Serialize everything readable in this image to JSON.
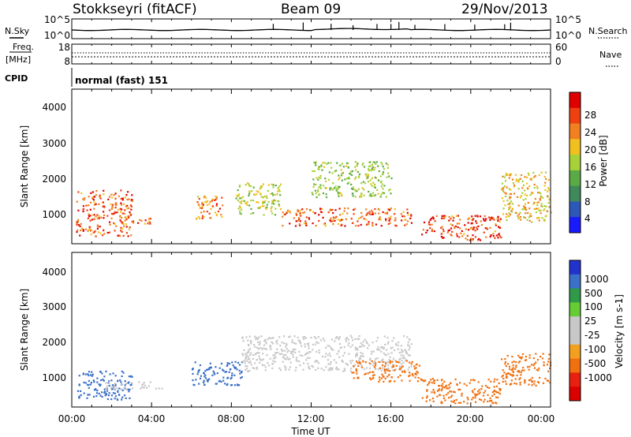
{
  "header": {
    "station": "Stokkseyri (fitACF)",
    "beam": "Beam 09",
    "date": "29/Nov/2013"
  },
  "side_labels": {
    "nsky": "N.Sky",
    "freq": "Freq.",
    "freq_unit": "[MHz]",
    "cpid": "CPID",
    "nsearch": "N.Search",
    "nave": "Nave"
  },
  "cpid_value": "normal (fast) 151",
  "colors": {
    "scale_power": [
      "#1a1aff",
      "#2e58b8",
      "#3e8a5a",
      "#5aaa46",
      "#a8d038",
      "#f0c020",
      "#f08020",
      "#f04010",
      "#e00000"
    ],
    "scale_velocity": [
      "#2233cc",
      "#3a70c8",
      "#2e9a4a",
      "#66cc33",
      "#c8c8c8",
      "#c8c8c8",
      "#f3a020",
      "#f07010",
      "#e82010",
      "#dd0000"
    ]
  },
  "chart_data": [
    {
      "type": "line",
      "panel": "noise",
      "left_ticks": [
        "10^5",
        "10^0"
      ],
      "right_ticks": [
        "10^5",
        "10^0"
      ],
      "series": [
        {
          "name": "N.Sky",
          "style": "solid"
        },
        {
          "name": "N.Search",
          "style": "dotted"
        }
      ],
      "x_range": [
        "00:00",
        "00:00"
      ]
    },
    {
      "type": "line",
      "panel": "frequency",
      "left_ticks": [
        "18",
        "8"
      ],
      "right_ticks": [
        "60",
        "0"
      ],
      "series": [
        {
          "name": "Freq.",
          "style": "dotted",
          "approx_value": 12
        },
        {
          "name": "Nave",
          "style": "dotted",
          "approx_value": 25
        }
      ]
    },
    {
      "type": "heatmap",
      "panel": "power",
      "ylabel": "Slant Range [km]",
      "yticks": [
        "4000",
        "3000",
        "2000",
        "1000"
      ],
      "ylim": [
        180,
        4500
      ],
      "colorbar_label": "Power [dB]",
      "colorbar_ticks": [
        "28",
        "24",
        "20",
        "16",
        "12",
        "8",
        "4"
      ],
      "colorbar_range": [
        0,
        30
      ],
      "scatter_regions": [
        {
          "t0": 0.2,
          "t1": 3.0,
          "r0": 400,
          "r1": 1700,
          "value": 24
        },
        {
          "t0": 2.5,
          "t1": 4.0,
          "r0": 750,
          "r1": 950,
          "value": 22
        },
        {
          "t0": 6.2,
          "t1": 7.6,
          "r0": 900,
          "r1": 1600,
          "value": 22
        },
        {
          "t0": 8.2,
          "t1": 10.5,
          "r0": 1000,
          "r1": 1900,
          "value": 16
        },
        {
          "t0": 10.5,
          "t1": 17.0,
          "r0": 700,
          "r1": 1200,
          "value": 24
        },
        {
          "t0": 12.0,
          "t1": 16.0,
          "r0": 1500,
          "r1": 2500,
          "value": 14
        },
        {
          "t0": 17.5,
          "t1": 21.5,
          "r0": 300,
          "r1": 1000,
          "value": 26
        },
        {
          "t0": 21.5,
          "t1": 24.0,
          "r0": 800,
          "r1": 2200,
          "value": 18
        }
      ]
    },
    {
      "type": "heatmap",
      "panel": "velocity",
      "ylabel": "Slant Range [km]",
      "yticks": [
        "4000",
        "3000",
        "2000",
        "1000"
      ],
      "ylim": [
        180,
        4500
      ],
      "xlabel": "Time UT",
      "xticks": [
        "00:00",
        "04:00",
        "08:00",
        "12:00",
        "16:00",
        "20:00",
        "00:00"
      ],
      "colorbar_label": "Velocity [m s-1]",
      "colorbar_ticks": [
        "1000",
        "500",
        "100",
        "25",
        "-25",
        "-100",
        "-500",
        "-1000"
      ],
      "scatter_regions": [
        {
          "t0": 0.2,
          "t1": 3.0,
          "r0": 400,
          "r1": 1200,
          "value": 300
        },
        {
          "t0": 1.5,
          "t1": 4.5,
          "r0": 700,
          "r1": 900,
          "value": 0
        },
        {
          "t0": 6.0,
          "t1": 8.5,
          "r0": 800,
          "r1": 1500,
          "value": 150
        },
        {
          "t0": 8.5,
          "t1": 17.0,
          "r0": 1200,
          "r1": 2200,
          "value": 0
        },
        {
          "t0": 14.0,
          "t1": 17.5,
          "r0": 900,
          "r1": 1500,
          "value": -200
        },
        {
          "t0": 17.5,
          "t1": 21.5,
          "r0": 300,
          "r1": 1000,
          "value": -300
        },
        {
          "t0": 21.5,
          "t1": 24.0,
          "r0": 800,
          "r1": 1700,
          "value": -400
        }
      ]
    }
  ]
}
